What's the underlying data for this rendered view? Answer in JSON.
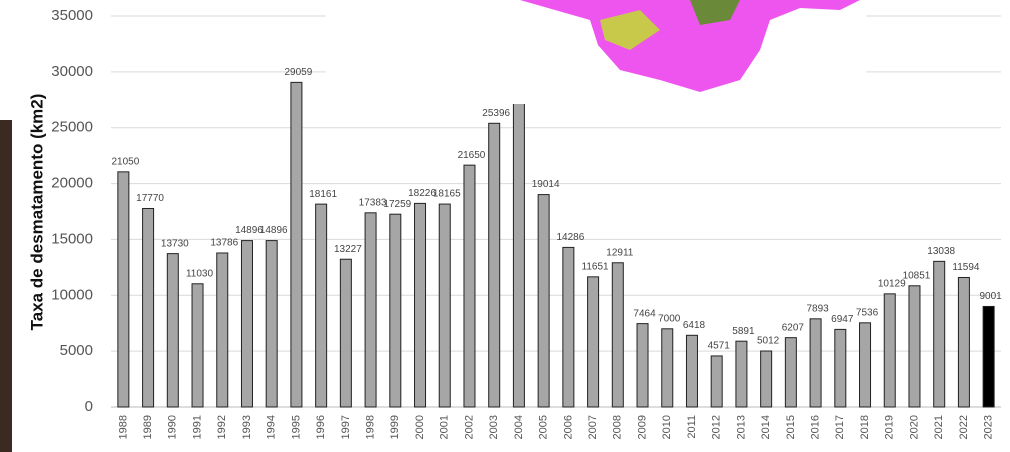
{
  "chart_data": {
    "type": "bar",
    "y_label": "Taxa de desmatamento (km2)",
    "categories": [
      "1988",
      "1989",
      "1990",
      "1991",
      "1992",
      "1993",
      "1994",
      "1995",
      "1996",
      "1997",
      "1998",
      "1999",
      "2000",
      "2001",
      "2002",
      "2003",
      "2004",
      "2005",
      "2006",
      "2007",
      "2008",
      "2009",
      "2010",
      "2011",
      "2012",
      "2013",
      "2014",
      "2015",
      "2016",
      "2017",
      "2018",
      "2019",
      "2020",
      "2021",
      "2022",
      "2023"
    ],
    "values": [
      21050,
      17770,
      13730,
      11030,
      13786,
      14896,
      14896,
      29059,
      18161,
      13227,
      17383,
      17259,
      18226,
      18165,
      21650,
      25396,
      27772,
      19014,
      14286,
      11651,
      12911,
      7464,
      7000,
      6418,
      4571,
      5891,
      5012,
      6207,
      7893,
      6947,
      7536,
      10129,
      10851,
      13038,
      11594,
      9001
    ],
    "value_labels": [
      "21050",
      "17770",
      "13730",
      "11030",
      "13786",
      "14896",
      "14896",
      "29059",
      "18161",
      "13227",
      "17383",
      "17259",
      "18226",
      "18165",
      "21650",
      "25396",
      null,
      "19014",
      "14286",
      "11651",
      "12911",
      "7464",
      "7000",
      "6418",
      "4571",
      "5891",
      "5012",
      "6207",
      "7893",
      "6947",
      "7536",
      "10129",
      "10851",
      "13038",
      "11594",
      "9001"
    ],
    "colors": [
      "#a6a6a6",
      "#a6a6a6",
      "#a6a6a6",
      "#a6a6a6",
      "#a6a6a6",
      "#a6a6a6",
      "#a6a6a6",
      "#a6a6a6",
      "#a6a6a6",
      "#a6a6a6",
      "#a6a6a6",
      "#a6a6a6",
      "#a6a6a6",
      "#a6a6a6",
      "#a6a6a6",
      "#a6a6a6",
      "#a6a6a6",
      "#a6a6a6",
      "#a6a6a6",
      "#a6a6a6",
      "#a6a6a6",
      "#a6a6a6",
      "#a6a6a6",
      "#a6a6a6",
      "#a6a6a6",
      "#a6a6a6",
      "#a6a6a6",
      "#a6a6a6",
      "#a6a6a6",
      "#a6a6a6",
      "#a6a6a6",
      "#a6a6a6",
      "#a6a6a6",
      "#a6a6a6",
      "#a6a6a6",
      "#000000"
    ],
    "ylim": [
      0,
      35000
    ],
    "yticks": [
      0,
      5000,
      10000,
      15000,
      20000,
      25000,
      30000,
      35000
    ],
    "grid": true
  }
}
